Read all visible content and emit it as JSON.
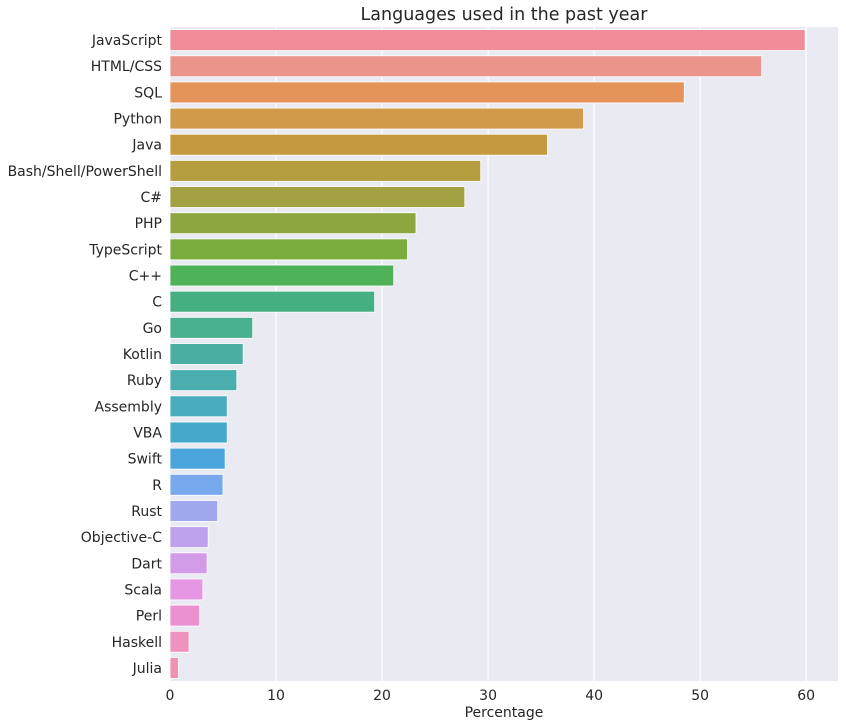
{
  "chart_data": {
    "type": "bar",
    "orientation": "horizontal",
    "title": "Languages used in the past year",
    "xlabel": "Percentage",
    "ylabel": "",
    "xlim": [
      0,
      63
    ],
    "xticks": [
      "0",
      "10",
      "20",
      "30",
      "40",
      "50",
      "60"
    ],
    "grid": true,
    "background": "#eaeaf2",
    "categories": [
      "JavaScript",
      "HTML/CSS",
      "SQL",
      "Python",
      "Java",
      "Bash/Shell/PowerShell",
      "C#",
      "PHP",
      "TypeScript",
      "C++",
      "C",
      "Go",
      "Kotlin",
      "Ruby",
      "Assembly",
      "VBA",
      "Swift",
      "R",
      "Rust",
      "Objective-C",
      "Dart",
      "Scala",
      "Perl",
      "Haskell",
      "Julia"
    ],
    "values": [
      59.9,
      55.8,
      48.5,
      39.0,
      35.6,
      29.3,
      27.8,
      23.2,
      22.4,
      21.1,
      19.3,
      7.8,
      6.9,
      6.3,
      5.4,
      5.4,
      5.2,
      5.0,
      4.5,
      3.6,
      3.5,
      3.1,
      2.8,
      1.8,
      0.8
    ],
    "colors": [
      "#f08d98",
      "#ea948b",
      "#e59359",
      "#d09a4a",
      "#c59a3e",
      "#b49e40",
      "#a3a142",
      "#8ea640",
      "#7aab3d",
      "#4fb258",
      "#45af82",
      "#49b08f",
      "#4aafa2",
      "#4aaeaf",
      "#48acbe",
      "#45a9cc",
      "#4aa5dd",
      "#79a9ed",
      "#a2a8ee",
      "#bfa2ee",
      "#d29ce9",
      "#e697e3",
      "#ec91cf",
      "#ee93be",
      "#f092b1"
    ]
  }
}
